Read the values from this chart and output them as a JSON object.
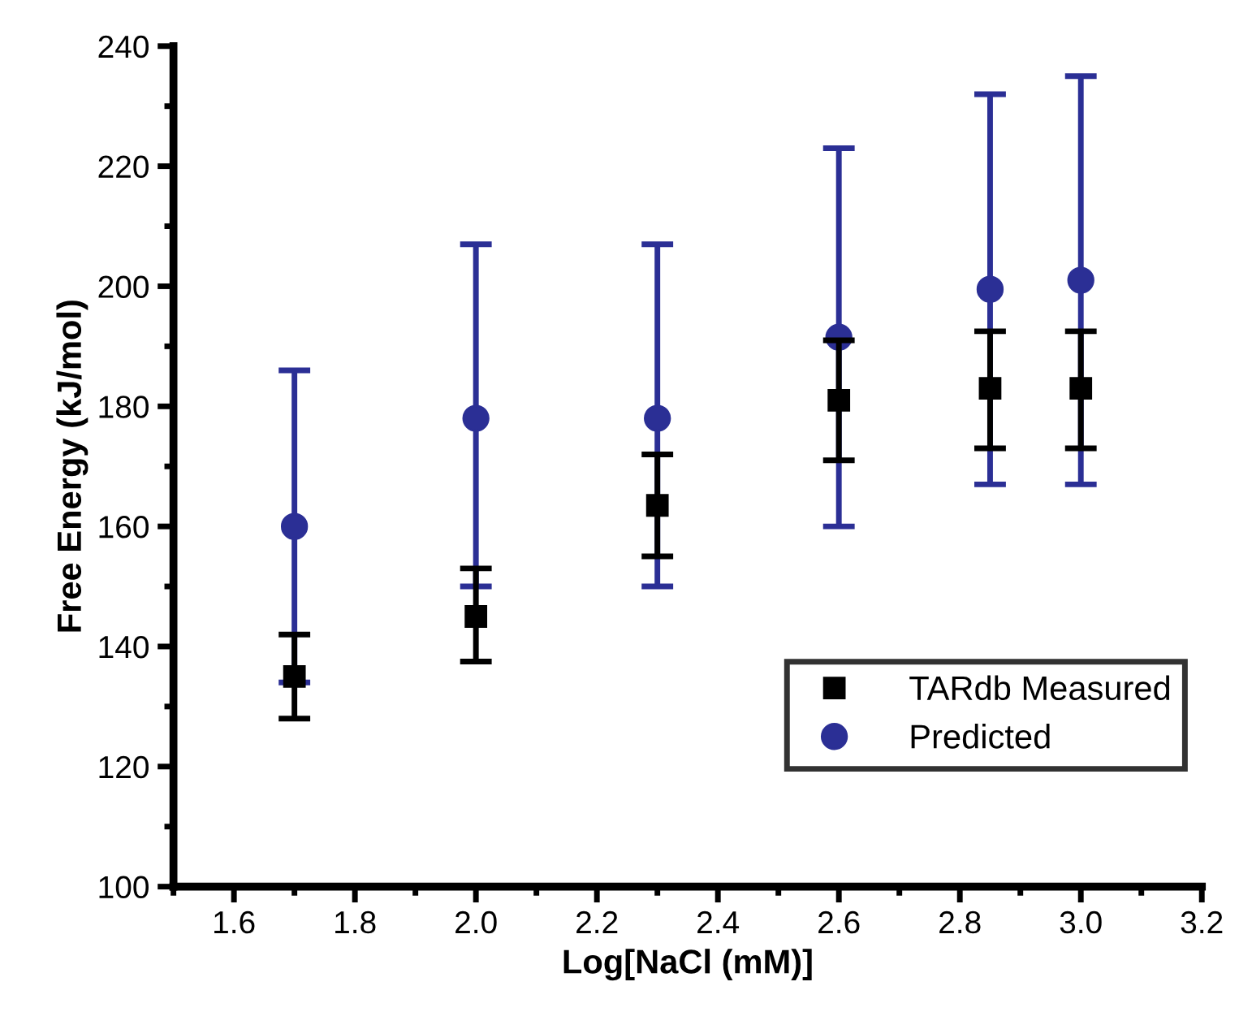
{
  "chart_data": {
    "type": "scatter",
    "xlabel": "Log[NaCl (mM)]",
    "ylabel": "Free Energy (kJ/mol)",
    "xlim": [
      1.5,
      3.2
    ],
    "xticks": [
      {
        "value": 1.6,
        "label": "1.6"
      },
      {
        "value": 1.8,
        "label": "1.8"
      },
      {
        "value": 2.0,
        "label": "2.0"
      },
      {
        "value": 2.2,
        "label": "2.2"
      },
      {
        "value": 2.4,
        "label": "2.4"
      },
      {
        "value": 2.6,
        "label": "2.6"
      },
      {
        "value": 2.8,
        "label": "2.8"
      },
      {
        "value": 3.0,
        "label": "3.0"
      },
      {
        "value": 3.2,
        "label": "3.2"
      }
    ],
    "ylim": [
      100,
      240
    ],
    "yticks": [
      100,
      120,
      140,
      160,
      180,
      200,
      220,
      240
    ],
    "x": [
      1.7,
      2.0,
      2.3,
      2.6,
      2.85,
      3.0
    ],
    "series": [
      {
        "name": "TARdb Measured",
        "color": "#000000",
        "marker": "square",
        "values": [
          135,
          145,
          163.5,
          181,
          183,
          183
        ],
        "errors": [
          [
            128,
            142
          ],
          [
            137.5,
            153
          ],
          [
            155,
            172
          ],
          [
            171,
            191
          ],
          [
            173,
            192.5
          ],
          [
            173,
            192.5
          ]
        ]
      },
      {
        "name": "Predicted",
        "color": "#2b2f95",
        "marker": "circle",
        "values": [
          160,
          178,
          178,
          191.5,
          199.5,
          201
        ],
        "errors": [
          [
            134,
            186
          ],
          [
            150,
            207
          ],
          [
            150,
            207
          ],
          [
            160,
            223
          ],
          [
            167,
            232
          ],
          [
            167,
            235
          ]
        ]
      }
    ],
    "legend": "bottom right",
    "grid": false
  }
}
